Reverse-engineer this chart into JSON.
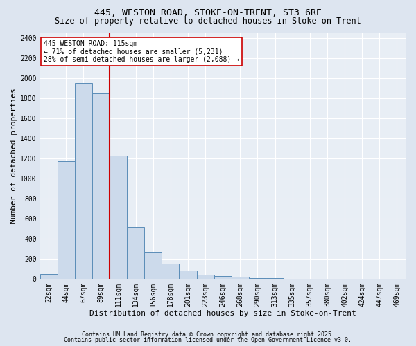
{
  "title_line1": "445, WESTON ROAD, STOKE-ON-TRENT, ST3 6RE",
  "title_line2": "Size of property relative to detached houses in Stoke-on-Trent",
  "xlabel": "Distribution of detached houses by size in Stoke-on-Trent",
  "ylabel": "Number of detached properties",
  "categories": [
    "22sqm",
    "44sqm",
    "67sqm",
    "89sqm",
    "111sqm",
    "134sqm",
    "156sqm",
    "178sqm",
    "201sqm",
    "223sqm",
    "246sqm",
    "268sqm",
    "290sqm",
    "313sqm",
    "335sqm",
    "357sqm",
    "380sqm",
    "402sqm",
    "424sqm",
    "447sqm",
    "469sqm"
  ],
  "values": [
    50,
    1170,
    1950,
    1850,
    1230,
    520,
    270,
    155,
    85,
    40,
    30,
    20,
    5,
    5,
    3,
    2,
    1,
    0,
    0,
    0,
    0
  ],
  "bar_color": "#ccdaeb",
  "bar_edge_color": "#5b8db8",
  "vline_color": "#cc0000",
  "vline_x_index": 3,
  "annotation_text": "445 WESTON ROAD: 115sqm\n← 71% of detached houses are smaller (5,231)\n28% of semi-detached houses are larger (2,088) →",
  "annotation_box_facecolor": "#ffffff",
  "annotation_box_edgecolor": "#cc0000",
  "ylim": [
    0,
    2450
  ],
  "yticks": [
    0,
    200,
    400,
    600,
    800,
    1000,
    1200,
    1400,
    1600,
    1800,
    2000,
    2200,
    2400
  ],
  "footer_line1": "Contains HM Land Registry data © Crown copyright and database right 2025.",
  "footer_line2": "Contains public sector information licensed under the Open Government Licence v3.0.",
  "fig_facecolor": "#dde5f0",
  "ax_facecolor": "#e8eef5",
  "grid_color": "#ffffff",
  "title1_fontsize": 9.5,
  "title2_fontsize": 8.5,
  "tick_fontsize": 7,
  "ylabel_fontsize": 8,
  "xlabel_fontsize": 8,
  "annotation_fontsize": 7,
  "footer_fontsize": 6
}
